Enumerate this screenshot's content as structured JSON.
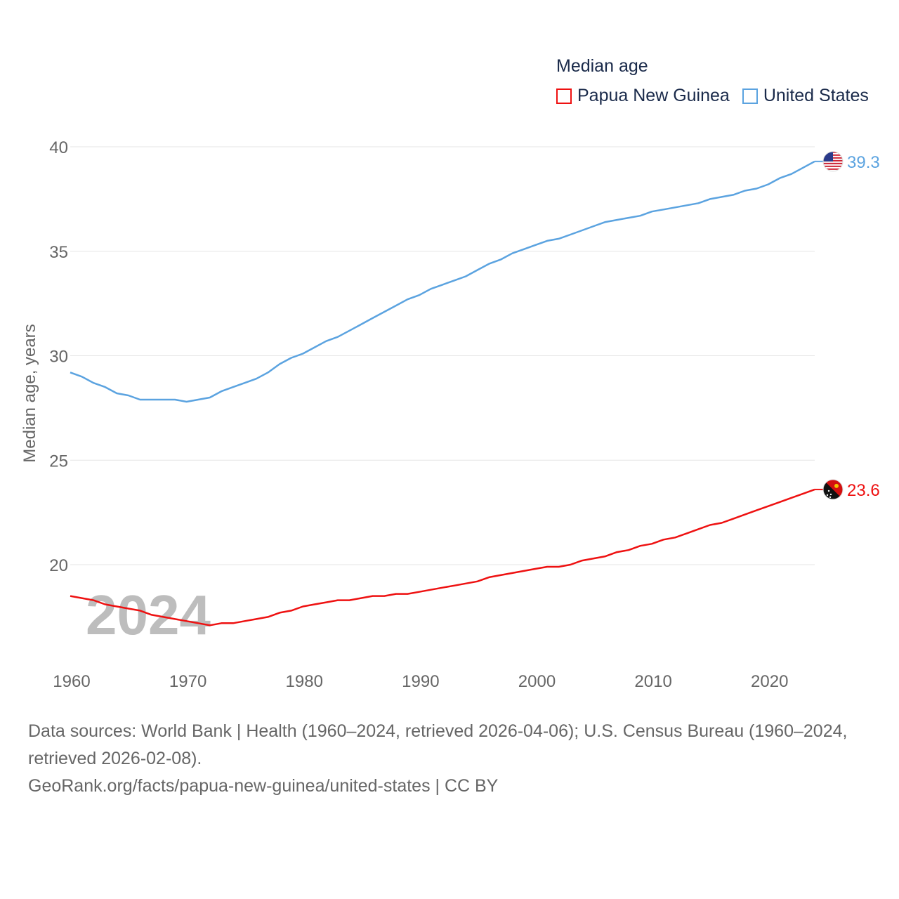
{
  "legend": {
    "title": "Median age",
    "items": [
      {
        "label": "Papua New Guinea",
        "color": "#ee1111"
      },
      {
        "label": "United States",
        "color": "#5ba3e0"
      }
    ]
  },
  "chart_data": {
    "type": "line",
    "title": "Median age",
    "xlabel": "",
    "ylabel": "Median age, years",
    "xlim": [
      1960,
      2024
    ],
    "ylim": [
      16.5,
      40
    ],
    "yticks": [
      20,
      25,
      30,
      35,
      40
    ],
    "xticks": [
      1960,
      1970,
      1980,
      1990,
      2000,
      2010,
      2020
    ],
    "grid": true,
    "watermark_year": "2024",
    "x": [
      1960,
      1961,
      1962,
      1963,
      1964,
      1965,
      1966,
      1967,
      1968,
      1969,
      1970,
      1971,
      1972,
      1973,
      1974,
      1975,
      1976,
      1977,
      1978,
      1979,
      1980,
      1981,
      1982,
      1983,
      1984,
      1985,
      1986,
      1987,
      1988,
      1989,
      1990,
      1991,
      1992,
      1993,
      1994,
      1995,
      1996,
      1997,
      1998,
      1999,
      2000,
      2001,
      2002,
      2003,
      2004,
      2005,
      2006,
      2007,
      2008,
      2009,
      2010,
      2011,
      2012,
      2013,
      2014,
      2015,
      2016,
      2017,
      2018,
      2019,
      2020,
      2021,
      2022,
      2023,
      2024
    ],
    "series": [
      {
        "name": "United States",
        "color": "#5ba3e0",
        "end_label": "39.3",
        "values": [
          29.2,
          29.0,
          28.7,
          28.5,
          28.2,
          28.1,
          27.9,
          27.9,
          27.9,
          27.9,
          27.8,
          27.9,
          28.0,
          28.3,
          28.5,
          28.7,
          28.9,
          29.2,
          29.6,
          29.9,
          30.1,
          30.4,
          30.7,
          30.9,
          31.2,
          31.5,
          31.8,
          32.1,
          32.4,
          32.7,
          32.9,
          33.2,
          33.4,
          33.6,
          33.8,
          34.1,
          34.4,
          34.6,
          34.9,
          35.1,
          35.3,
          35.5,
          35.6,
          35.8,
          36.0,
          36.2,
          36.4,
          36.5,
          36.6,
          36.7,
          36.9,
          37.0,
          37.1,
          37.2,
          37.3,
          37.5,
          37.6,
          37.7,
          37.9,
          38.0,
          38.2,
          38.5,
          38.7,
          39.0,
          39.3
        ]
      },
      {
        "name": "Papua New Guinea",
        "color": "#ee1111",
        "end_label": "23.6",
        "values": [
          18.5,
          18.4,
          18.3,
          18.1,
          18.0,
          17.9,
          17.8,
          17.6,
          17.5,
          17.4,
          17.3,
          17.2,
          17.1,
          17.2,
          17.2,
          17.3,
          17.4,
          17.5,
          17.7,
          17.8,
          18.0,
          18.1,
          18.2,
          18.3,
          18.3,
          18.4,
          18.5,
          18.5,
          18.6,
          18.6,
          18.7,
          18.8,
          18.9,
          19.0,
          19.1,
          19.2,
          19.4,
          19.5,
          19.6,
          19.7,
          19.8,
          19.9,
          19.9,
          20.0,
          20.2,
          20.3,
          20.4,
          20.6,
          20.7,
          20.9,
          21.0,
          21.2,
          21.3,
          21.5,
          21.7,
          21.9,
          22.0,
          22.2,
          22.4,
          22.6,
          22.8,
          23.0,
          23.2,
          23.4,
          23.6
        ]
      }
    ]
  },
  "footer": {
    "sources_line1": "Data sources: World Bank | Health (1960–2024, retrieved 2026-04-06); U.S. Census Bureau (1960–2024,",
    "sources_line2": "retrieved 2026-02-08).",
    "link": "GeoRank.org/facts/papua-new-guinea/united-states | CC BY"
  }
}
